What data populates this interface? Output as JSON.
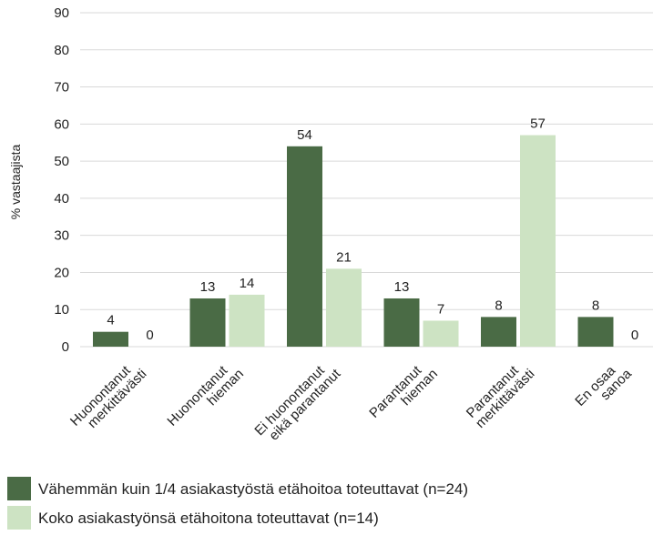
{
  "chart_data": {
    "type": "bar",
    "categories": [
      "Huonontanut\nmerkittävästi",
      "Huonontanut\nhieman",
      "Ei huonontanut\neikä parantanut",
      "Parantanut\nhieman",
      "Parantanut\nmerkittävästi",
      "En osaa\nsanoa"
    ],
    "series": [
      {
        "name": "Vähemmän kuin 1/4 asiakastyöstä etähoitoa toteuttavat (n=24)",
        "color": "#4a6b45",
        "values": [
          4,
          13,
          54,
          13,
          8,
          8
        ]
      },
      {
        "name": "Koko asiakastyönsä etähoitona toteuttavat (n=14)",
        "color": "#cde3c3",
        "values": [
          0,
          14,
          21,
          7,
          57,
          0
        ]
      }
    ],
    "y_label": "% vastaajista",
    "ylim": [
      0,
      90
    ],
    "yticks": [
      0,
      10,
      20,
      30,
      40,
      50,
      60,
      70,
      80,
      90
    ],
    "grid": true
  }
}
